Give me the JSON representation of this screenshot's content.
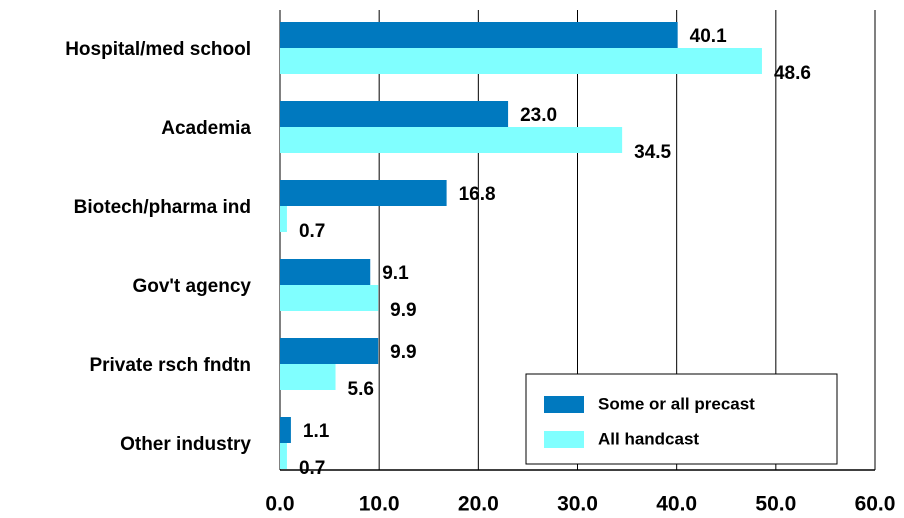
{
  "chart_data": {
    "type": "hbar",
    "categories": [
      "Hospital/med school",
      "Academia",
      "Biotech/pharma ind",
      "Gov't agency",
      "Private rsch fndtn",
      "Other industry"
    ],
    "series": [
      {
        "name": "Some or all precast",
        "color": "#0079bf",
        "values": [
          40.1,
          23.0,
          16.8,
          9.1,
          9.9,
          1.1
        ],
        "value_labels": [
          "40.1",
          "23.0",
          "16.8",
          "9.1",
          "9.9",
          "1.1"
        ]
      },
      {
        "name": "All handcast",
        "color": "#80ffff",
        "values": [
          48.6,
          34.5,
          0.7,
          9.9,
          5.6,
          0.7
        ],
        "value_labels": [
          "48.6",
          "34.5",
          "0.7",
          "9.9",
          "5.6",
          "0.7"
        ]
      }
    ],
    "xlim": [
      0,
      60
    ],
    "xticks": [
      {
        "value": 0,
        "label": "0.0"
      },
      {
        "value": 10,
        "label": "10.0"
      },
      {
        "value": 20,
        "label": "20.0"
      },
      {
        "value": 30,
        "label": "30.0"
      },
      {
        "value": 40,
        "label": "40.0"
      },
      {
        "value": 50,
        "label": "50.0"
      },
      {
        "value": 60,
        "label": "60.0"
      }
    ],
    "grid": true,
    "legend": "lower right"
  }
}
